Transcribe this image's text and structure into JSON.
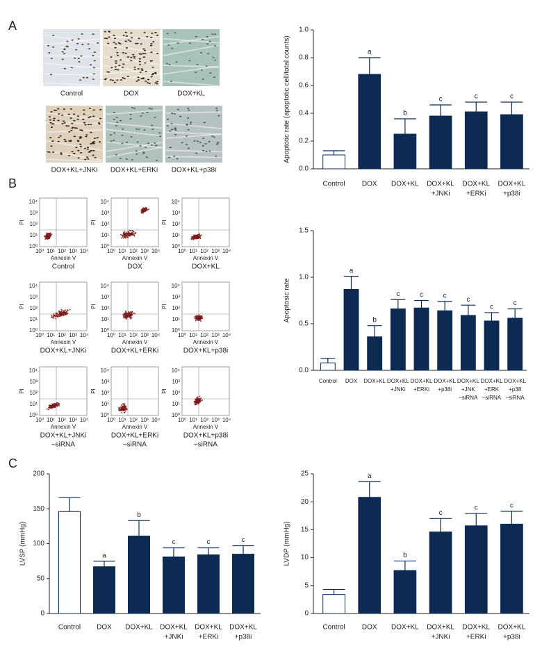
{
  "panel_labels": [
    "A",
    "B",
    "C"
  ],
  "micrographs": {
    "labels": [
      "Control",
      "DOX",
      "DOX+KL",
      "DOX+KL+JNKi",
      "DOX+KL+ERKi",
      "DOX+KL+p38i"
    ]
  },
  "flow_plots": {
    "x_label": "Annexin V",
    "y_label": "PI",
    "ticks": [
      {
        "value": 1,
        "label": "10⁰"
      },
      {
        "value": 10,
        "label": "10¹"
      },
      {
        "value": 100,
        "label": "10²"
      },
      {
        "value": 1000,
        "label": "10³"
      },
      {
        "value": 10000,
        "label": "10⁴"
      }
    ],
    "captions": [
      [
        "Control"
      ],
      [
        "DOX"
      ],
      [
        "DOX+KL"
      ],
      [
        "DOX+KL+JNKi"
      ],
      [
        "DOX+KL+ERKi"
      ],
      [
        "DOX+KL+p38i"
      ],
      [
        "DOX+KL+JNKi",
        "–siRNA"
      ],
      [
        "DOX+KL+ERKi",
        "–siRNA"
      ],
      [
        "DOX+KL+p38i",
        "–siRNA"
      ]
    ]
  },
  "chart_data": [
    {
      "type": "bar",
      "y_label": "Apoptotic rate (apoptotic cell/total counts)",
      "categories": [
        [
          "Control"
        ],
        [
          "DOX"
        ],
        [
          "DOX+KL"
        ],
        [
          "DOX+KL",
          "+JNKi"
        ],
        [
          "DOX+KL",
          "+ERKi"
        ],
        [
          "DOX+KL",
          "+p38i"
        ]
      ],
      "values": [
        0.1,
        0.68,
        0.25,
        0.38,
        0.41,
        0.39
      ],
      "errors": [
        0.03,
        0.12,
        0.11,
        0.08,
        0.07,
        0.09
      ],
      "letters": [
        null,
        "a",
        "b",
        "c",
        "c",
        "c"
      ],
      "colors": [
        "#ffffff",
        "#0d2b52",
        "#0d2b52",
        "#0d2b52",
        "#0d2b52",
        "#0d2b52"
      ],
      "ylim": [
        0,
        1
      ],
      "yticks": [
        {
          "value": 0,
          "label": "0.0"
        },
        0.2,
        0.4,
        0.6,
        0.8,
        {
          "value": 1,
          "label": "1.0"
        }
      ]
    },
    {
      "type": "bar",
      "y_label": "Apoptosic rate",
      "categories": [
        [
          "Control"
        ],
        [
          "DOX"
        ],
        [
          "DOX+KL"
        ],
        [
          "DOX+KL",
          "+JNKi"
        ],
        [
          "DOX+KL",
          "+ERKi"
        ],
        [
          "DOX+KL",
          "+p38i"
        ],
        [
          "DOX+KL",
          "+JNK",
          "–siRNA"
        ],
        [
          "DOX+KL",
          "+ERK",
          "–siRNA"
        ],
        [
          "DOX+KL",
          "+p38",
          "–siRNA"
        ]
      ],
      "values": [
        0.08,
        0.87,
        0.36,
        0.66,
        0.67,
        0.64,
        0.59,
        0.53,
        0.56
      ],
      "errors": [
        0.05,
        0.14,
        0.12,
        0.1,
        0.08,
        0.1,
        0.11,
        0.09,
        0.1
      ],
      "letters": [
        null,
        "a",
        "b",
        "c",
        "c",
        "c",
        "c",
        "c",
        "c"
      ],
      "colors": [
        "#ffffff",
        "#0d2b52",
        "#0d2b52",
        "#0d2b52",
        "#0d2b52",
        "#0d2b52",
        "#0d2b52",
        "#0d2b52",
        "#0d2b52"
      ],
      "ylim": [
        0,
        1.5
      ],
      "yticks": [
        {
          "value": 0,
          "label": "0.0"
        },
        0.5,
        {
          "value": 1,
          "label": "1.0"
        },
        1.5
      ]
    },
    {
      "type": "bar",
      "y_label": "LVSP (mmHg)",
      "categories": [
        [
          "Control"
        ],
        [
          "DOX"
        ],
        [
          "DOX+KL"
        ],
        [
          "DOX+KL",
          "+JNKi"
        ],
        [
          "DOX+KL",
          "+ERKi"
        ],
        [
          "DOX+KL",
          "+p38i"
        ]
      ],
      "values": [
        146,
        67,
        111,
        81,
        84,
        85
      ],
      "errors": [
        20,
        8,
        22,
        13,
        10,
        12
      ],
      "letters": [
        null,
        "a",
        "b",
        "c",
        "c",
        "c"
      ],
      "colors": [
        "#ffffff",
        "#0d2b52",
        "#0d2b52",
        "#0d2b52",
        "#0d2b52",
        "#0d2b52"
      ],
      "ylim": [
        0,
        200
      ],
      "yticks": [
        0,
        50,
        100,
        150,
        200
      ]
    },
    {
      "type": "bar",
      "y_label": "LVDP (mmHg)",
      "categories": [
        [
          "Control"
        ],
        [
          "DOX"
        ],
        [
          "DOX+KL"
        ],
        [
          "DOX+KL",
          "+JNKi"
        ],
        [
          "DOX+KL",
          "+ERKi"
        ],
        [
          "DOX+KL",
          "+p38i"
        ]
      ],
      "values": [
        3.4,
        20.8,
        7.7,
        14.6,
        15.7,
        16.0
      ],
      "errors": [
        0.9,
        2.8,
        1.7,
        2.4,
        2.2,
        2.3
      ],
      "letters": [
        null,
        "a",
        "b",
        "c",
        "c",
        "c"
      ],
      "colors": [
        "#ffffff",
        "#0d2b52",
        "#0d2b52",
        "#0d2b52",
        "#0d2b52",
        "#0d2b52"
      ],
      "ylim": [
        0,
        25
      ],
      "yticks": [
        0,
        5,
        10,
        15,
        20,
        25
      ]
    }
  ]
}
